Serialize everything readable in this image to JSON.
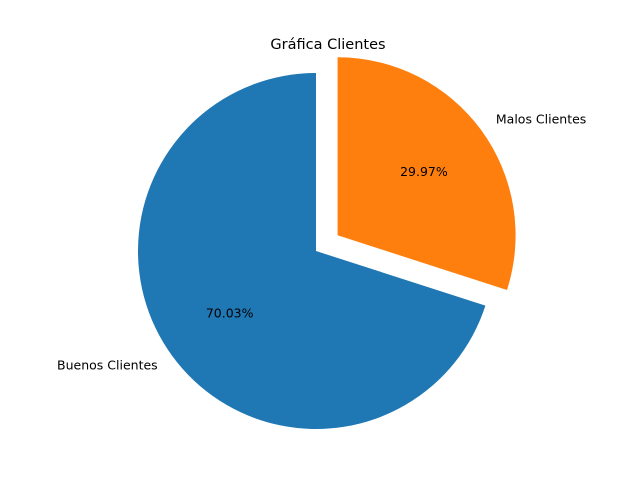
{
  "chart_data": {
    "type": "pie",
    "title": "Gráfica Clientes",
    "categories": [
      "Buenos Clientes",
      "Malos Clientes"
    ],
    "values": [
      70.03,
      29.97
    ],
    "percent_labels": [
      "70.03%",
      "29.97%"
    ],
    "colors": [
      "#1f77b4",
      "#ff7f0e"
    ],
    "explode": [
      0,
      0.15
    ],
    "start_angle_deg": 90,
    "legend": "none"
  }
}
